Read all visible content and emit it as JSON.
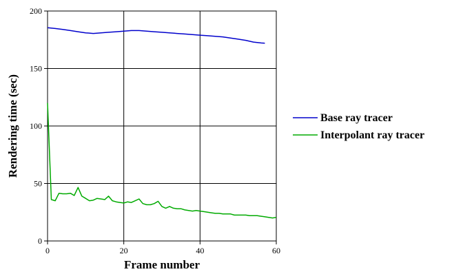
{
  "chart_data": {
    "type": "line",
    "xlabel": "Frame number",
    "ylabel": "Rendering time (sec)",
    "xlim": [
      0,
      60
    ],
    "ylim": [
      0,
      200
    ],
    "x_ticks": [
      "0",
      "20",
      "40",
      "60"
    ],
    "y_ticks": [
      "0",
      "50",
      "100",
      "150",
      "200"
    ],
    "grid": true,
    "legend_position": "right",
    "series": [
      {
        "name": "Base ray tracer",
        "color": "#0000cc",
        "x": [
          0,
          2,
          4,
          6,
          8,
          10,
          12,
          14,
          16,
          18,
          20,
          22,
          24,
          26,
          28,
          30,
          32,
          34,
          36,
          38,
          40,
          42,
          44,
          46,
          48,
          50,
          52,
          54,
          56,
          57
        ],
        "y": [
          185.5,
          184.8,
          184,
          183,
          182,
          181,
          180.5,
          181,
          181.5,
          182,
          182.5,
          183,
          183,
          182.5,
          182,
          181.5,
          181,
          180.5,
          180,
          179.5,
          179,
          178.5,
          178,
          177.5,
          176.5,
          175.5,
          174.5,
          173,
          172.2,
          172
        ]
      },
      {
        "name": "Interpolant ray tracer",
        "color": "#00aa00",
        "x": [
          0,
          1,
          2,
          3,
          4,
          5,
          6,
          7,
          8,
          9,
          10,
          11,
          12,
          13,
          14,
          15,
          16,
          17,
          18,
          19,
          20,
          21,
          22,
          23,
          24,
          25,
          26,
          27,
          28,
          29,
          30,
          31,
          32,
          33,
          34,
          35,
          36,
          37,
          38,
          39,
          40,
          41,
          42,
          43,
          44,
          45,
          46,
          47,
          48,
          49,
          50,
          51,
          52,
          53,
          54,
          55,
          56,
          57,
          58,
          59,
          60
        ],
        "y": [
          120,
          36,
          35,
          41.5,
          41,
          41,
          41.5,
          39.5,
          46.5,
          39,
          37,
          35,
          35.5,
          37,
          36.5,
          36,
          39,
          35,
          34,
          33.5,
          33,
          34,
          33.5,
          35,
          36.5,
          32.5,
          31.5,
          31.5,
          32.5,
          34.5,
          30,
          28.5,
          30,
          28.5,
          28,
          28,
          27,
          26.5,
          26,
          26.5,
          26,
          25.5,
          25,
          24.5,
          24,
          24,
          23.5,
          23.5,
          23.5,
          22.5,
          22.5,
          22.5,
          22.5,
          22,
          22,
          22,
          21.5,
          21,
          20.5,
          20,
          20.5
        ]
      }
    ]
  }
}
